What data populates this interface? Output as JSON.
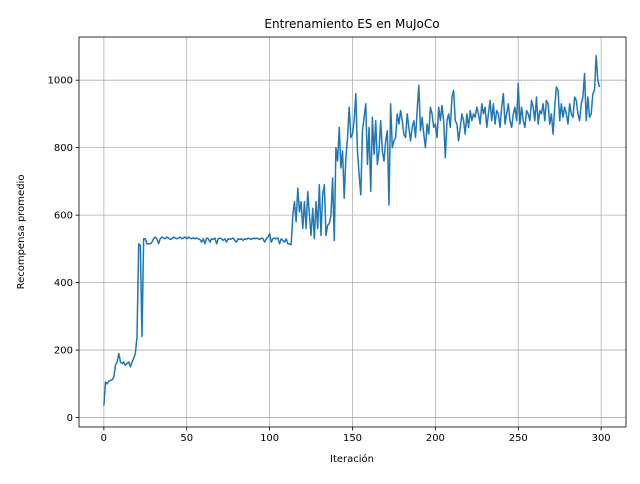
{
  "chart_data": {
    "type": "line",
    "title": "Entrenamiento ES en MuJoCo",
    "x_label": "Iteración",
    "y_label": "Recompensa promedio",
    "x": [
      0,
      1,
      2,
      3,
      4,
      5,
      6,
      7,
      8,
      9,
      10,
      11,
      12,
      13,
      14,
      15,
      16,
      17,
      18,
      19,
      20,
      21,
      22,
      23,
      24,
      25,
      26,
      27,
      28,
      29,
      30,
      31,
      32,
      33,
      34,
      35,
      36,
      37,
      38,
      39,
      40,
      41,
      42,
      43,
      44,
      45,
      46,
      47,
      48,
      49,
      50,
      51,
      52,
      53,
      54,
      55,
      56,
      57,
      58,
      59,
      60,
      61,
      62,
      63,
      64,
      65,
      66,
      67,
      68,
      69,
      70,
      71,
      72,
      73,
      74,
      75,
      76,
      77,
      78,
      79,
      80,
      81,
      82,
      83,
      84,
      85,
      86,
      87,
      88,
      89,
      90,
      91,
      92,
      93,
      94,
      95,
      96,
      97,
      98,
      99,
      100,
      101,
      102,
      103,
      104,
      105,
      106,
      107,
      108,
      109,
      110,
      111,
      112,
      113,
      114,
      115,
      116,
      117,
      118,
      119,
      120,
      121,
      122,
      123,
      124,
      125,
      126,
      127,
      128,
      129,
      130,
      131,
      132,
      133,
      134,
      135,
      136,
      137,
      138,
      139,
      140,
      141,
      142,
      143,
      144,
      145,
      146,
      147,
      148,
      149,
      150,
      151,
      152,
      153,
      154,
      155,
      156,
      157,
      158,
      159,
      160,
      161,
      162,
      163,
      164,
      165,
      166,
      167,
      168,
      169,
      170,
      171,
      172,
      173,
      174,
      175,
      176,
      177,
      178,
      179,
      180,
      181,
      182,
      183,
      184,
      185,
      186,
      187,
      188,
      189,
      190,
      191,
      192,
      193,
      194,
      195,
      196,
      197,
      198,
      199,
      200,
      201,
      202,
      203,
      204,
      205,
      206,
      207,
      208,
      209,
      210,
      211,
      212,
      213,
      214,
      215,
      216,
      217,
      218,
      219,
      220,
      221,
      222,
      223,
      224,
      225,
      226,
      227,
      228,
      229,
      230,
      231,
      232,
      233,
      234,
      235,
      236,
      237,
      238,
      239,
      240,
      241,
      242,
      243,
      244,
      245,
      246,
      247,
      248,
      249,
      250,
      251,
      252,
      253,
      254,
      255,
      256,
      257,
      258,
      259,
      260,
      261,
      262,
      263,
      264,
      265,
      266,
      267,
      268,
      269,
      270,
      271,
      272,
      273,
      274,
      275,
      276,
      277,
      278,
      279,
      280,
      281,
      282,
      283,
      284,
      285,
      286,
      287,
      288,
      289,
      290,
      291,
      292,
      293,
      294,
      295,
      296,
      297,
      298,
      299
    ],
    "values": [
      35,
      105,
      100,
      108,
      110,
      112,
      120,
      155,
      165,
      190,
      165,
      160,
      165,
      155,
      160,
      165,
      150,
      165,
      175,
      190,
      240,
      515,
      510,
      240,
      530,
      530,
      515,
      515,
      515,
      520,
      530,
      535,
      530,
      515,
      530,
      535,
      532,
      530,
      535,
      532,
      528,
      530,
      535,
      532,
      530,
      532,
      535,
      530,
      532,
      535,
      530,
      535,
      532,
      530,
      533,
      530,
      532,
      530,
      528,
      520,
      530,
      515,
      532,
      530,
      520,
      530,
      528,
      532,
      515,
      530,
      532,
      530,
      525,
      530,
      520,
      530,
      528,
      530,
      532,
      525,
      520,
      530,
      528,
      530,
      525,
      530,
      528,
      532,
      530,
      528,
      532,
      530,
      532,
      530,
      528,
      532,
      530,
      520,
      530,
      535,
      545,
      520,
      530,
      532,
      530,
      532,
      515,
      530,
      525,
      520,
      530,
      515,
      515,
      512,
      600,
      640,
      580,
      680,
      610,
      640,
      560,
      640,
      560,
      670,
      600,
      540,
      620,
      530,
      640,
      560,
      690,
      540,
      660,
      690,
      540,
      570,
      575,
      600,
      710,
      525,
      800,
      760,
      860,
      740,
      790,
      650,
      770,
      830,
      920,
      830,
      840,
      880,
      960,
      790,
      720,
      660,
      850,
      890,
      930,
      750,
      860,
      670,
      890,
      780,
      880,
      750,
      790,
      880,
      790,
      760,
      820,
      850,
      630,
      930,
      800,
      820,
      830,
      900,
      870,
      910,
      880,
      840,
      830,
      900,
      860,
      820,
      860,
      880,
      830,
      910,
      985,
      850,
      890,
      840,
      800,
      870,
      840,
      920,
      900,
      860,
      870,
      830,
      920,
      880,
      925,
      880,
      770,
      880,
      900,
      860,
      950,
      970,
      880,
      870,
      820,
      860,
      900,
      880,
      840,
      900,
      860,
      910,
      880,
      900,
      890,
      920,
      900,
      870,
      930,
      900,
      920,
      860,
      900,
      940,
      880,
      930,
      870,
      910,
      900,
      860,
      920,
      960,
      870,
      900,
      930,
      880,
      860,
      900,
      920,
      880,
      990,
      870,
      920,
      880,
      860,
      910,
      900,
      880,
      940,
      920,
      880,
      950,
      870,
      910,
      900,
      930,
      880,
      940,
      930,
      870,
      900,
      840,
      920,
      980,
      970,
      880,
      930,
      890,
      920,
      900,
      870,
      930,
      900,
      890,
      950,
      940,
      900,
      880,
      930,
      950,
      1020,
      880,
      950,
      890,
      900,
      960,
      970,
      1073,
      1000,
      980
    ],
    "color": "#1f77b4",
    "xlim": [
      -15,
      315
    ],
    "xticks": [
      0,
      50,
      100,
      150,
      200,
      250,
      300
    ],
    "ylim": [
      -28,
      1128
    ],
    "yticks": [
      0,
      200,
      400,
      600,
      800,
      1000
    ],
    "grid": true
  }
}
